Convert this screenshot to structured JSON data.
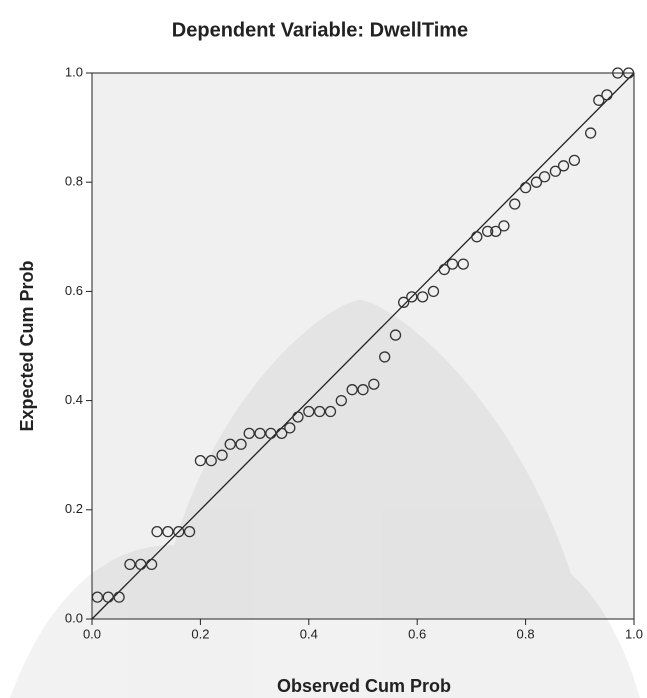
{
  "chart_data": {
    "type": "scatter",
    "title": "Dependent Variable: DwellTime",
    "xlabel": "Observed Cum Prob",
    "ylabel": "Expected Cum Prob",
    "xlim": [
      0,
      1
    ],
    "ylim": [
      0,
      1
    ],
    "xticks": [
      {
        "value": 0,
        "label": "0.0"
      },
      {
        "value": 0.2,
        "label": "0.2"
      },
      {
        "value": 0.4,
        "label": "0.4"
      },
      {
        "value": 0.6,
        "label": "0.6"
      },
      {
        "value": 0.8,
        "label": "0.8"
      },
      {
        "value": 1,
        "label": "1.0"
      }
    ],
    "yticks": [
      {
        "value": 0,
        "label": "0.0"
      },
      {
        "value": 0.2,
        "label": "0.2"
      },
      {
        "value": 0.4,
        "label": "0.4"
      },
      {
        "value": 0.6,
        "label": "0.6"
      },
      {
        "value": 0.8,
        "label": "0.8"
      },
      {
        "value": 1,
        "label": "1.0"
      }
    ],
    "color": "#333333",
    "x": [
      0.01,
      0.03,
      0.05,
      0.07,
      0.09,
      0.11,
      0.12,
      0.14,
      0.16,
      0.18,
      0.2,
      0.22,
      0.24,
      0.255,
      0.275,
      0.29,
      0.31,
      0.33,
      0.35,
      0.365,
      0.38,
      0.4,
      0.42,
      0.44,
      0.46,
      0.48,
      0.5,
      0.52,
      0.54,
      0.56,
      0.575,
      0.59,
      0.61,
      0.63,
      0.65,
      0.665,
      0.685,
      0.71,
      0.73,
      0.745,
      0.76,
      0.78,
      0.8,
      0.82,
      0.835,
      0.855,
      0.87,
      0.89,
      0.92,
      0.935,
      0.95,
      0.97,
      0.99
    ],
    "values": [
      0.04,
      0.04,
      0.04,
      0.1,
      0.1,
      0.1,
      0.16,
      0.16,
      0.16,
      0.16,
      0.29,
      0.29,
      0.3,
      0.32,
      0.32,
      0.34,
      0.34,
      0.34,
      0.34,
      0.35,
      0.37,
      0.38,
      0.38,
      0.38,
      0.4,
      0.42,
      0.42,
      0.43,
      0.48,
      0.52,
      0.58,
      0.59,
      0.59,
      0.6,
      0.64,
      0.65,
      0.65,
      0.7,
      0.71,
      0.71,
      0.72,
      0.76,
      0.79,
      0.8,
      0.81,
      0.82,
      0.83,
      0.84,
      0.89,
      0.95,
      0.96,
      1.0,
      1.0
    ]
  }
}
